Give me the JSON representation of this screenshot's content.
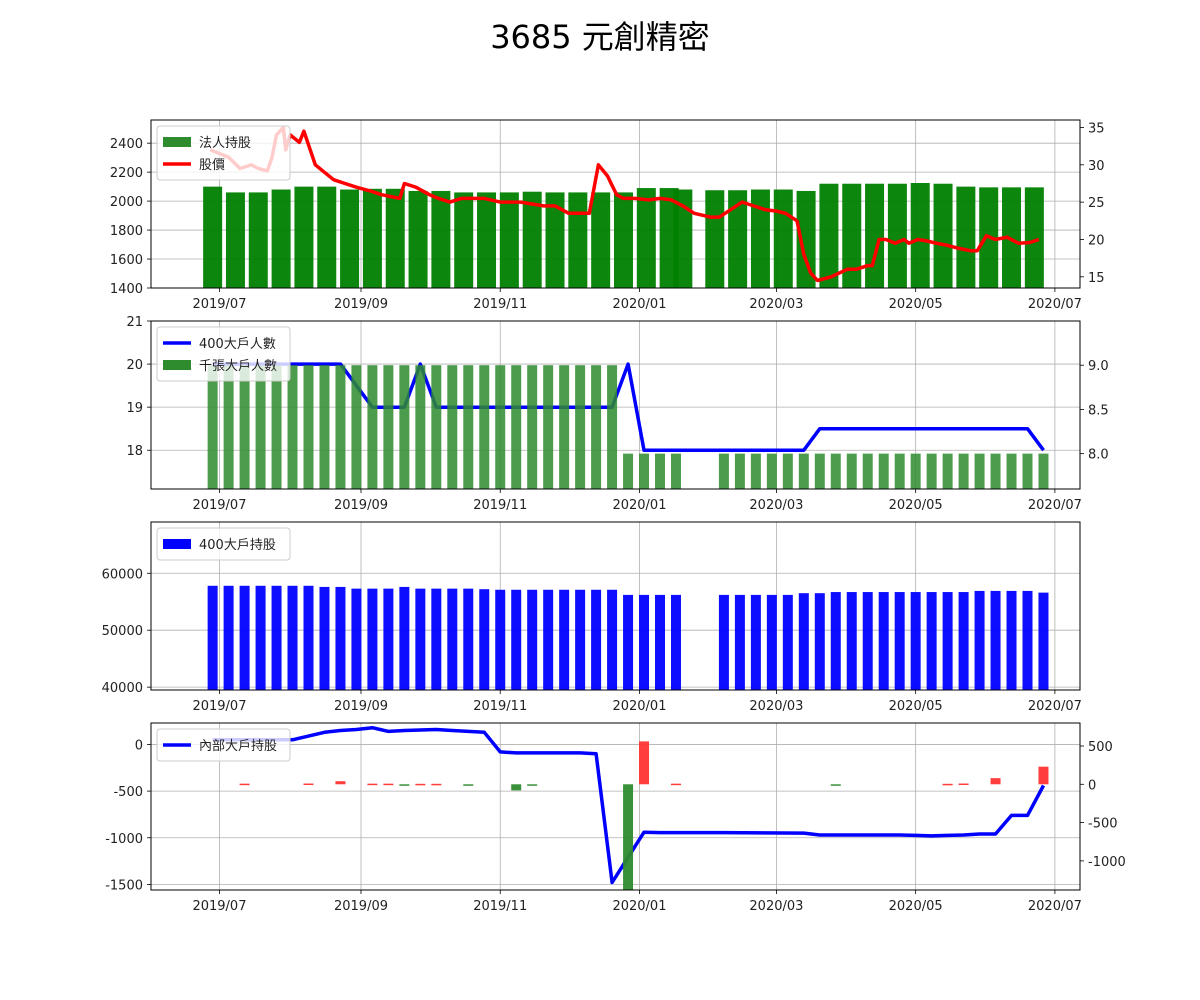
{
  "title": "3685 元創精密",
  "chart_data": [
    {
      "type": "bar+line",
      "x_ticks": [
        "2019/07",
        "2019/09",
        "2019/11",
        "2020/01",
        "2020/03",
        "2020/05",
        "2020/07"
      ],
      "y_left": {
        "lim": [
          1400,
          2560
        ],
        "ticks": [
          "1400",
          "1600",
          "1800",
          "2000",
          "2200",
          "2400"
        ]
      },
      "y_right": {
        "lim": [
          13.5,
          36
        ],
        "ticks": [
          "15",
          "20",
          "25",
          "30",
          "35"
        ]
      },
      "legend": [
        "法人持股",
        "股價"
      ],
      "series": [
        {
          "name": "法人持股",
          "axis": "left",
          "kind": "bar",
          "x": [
            "2019-06-28",
            "2019-07-08",
            "2019-07-18",
            "2019-07-28",
            "2019-08-07",
            "2019-08-17",
            "2019-08-27",
            "2019-09-06",
            "2019-09-16",
            "2019-09-26",
            "2019-10-06",
            "2019-10-16",
            "2019-10-26",
            "2019-11-05",
            "2019-11-15",
            "2019-11-25",
            "2019-12-05",
            "2019-12-15",
            "2019-12-25",
            "2020-01-04",
            "2020-01-14",
            "2020-01-20",
            "2020-02-03",
            "2020-02-13",
            "2020-02-23",
            "2020-03-04",
            "2020-03-14",
            "2020-03-24",
            "2020-04-03",
            "2020-04-13",
            "2020-04-23",
            "2020-05-03",
            "2020-05-13",
            "2020-05-23",
            "2020-06-02",
            "2020-06-12",
            "2020-06-22"
          ],
          "values": [
            2100,
            2060,
            2060,
            2080,
            2100,
            2100,
            2080,
            2085,
            2085,
            2070,
            2070,
            2060,
            2060,
            2060,
            2065,
            2060,
            2060,
            2060,
            2060,
            2090,
            2090,
            2080,
            2075,
            2075,
            2080,
            2080,
            2070,
            2120,
            2120,
            2120,
            2120,
            2125,
            2120,
            2100,
            2095,
            2095,
            2095
          ]
        },
        {
          "name": "股價",
          "axis": "right",
          "kind": "line",
          "color": "#ff0000",
          "x": [
            "2019-06-27",
            "2019-07-05",
            "2019-07-10",
            "2019-07-15",
            "2019-07-18",
            "2019-07-22",
            "2019-07-24",
            "2019-07-26",
            "2019-07-29",
            "2019-07-30",
            "2019-08-01",
            "2019-08-05",
            "2019-08-07",
            "2019-08-12",
            "2019-08-16",
            "2019-08-20",
            "2019-08-25",
            "2019-08-30",
            "2019-09-05",
            "2019-09-10",
            "2019-09-18",
            "2019-09-20",
            "2019-09-25",
            "2019-10-01",
            "2019-10-05",
            "2019-10-10",
            "2019-10-15",
            "2019-10-20",
            "2019-10-25",
            "2019-11-01",
            "2019-11-05",
            "2019-11-10",
            "2019-11-20",
            "2019-11-25",
            "2019-12-01",
            "2019-12-05",
            "2019-12-10",
            "2019-12-14",
            "2019-12-18",
            "2019-12-22",
            "2019-12-25",
            "2019-12-30",
            "2020-01-05",
            "2020-01-10",
            "2020-01-15",
            "2020-01-20",
            "2020-01-25",
            "2020-02-01",
            "2020-02-05",
            "2020-02-10",
            "2020-02-15",
            "2020-02-20",
            "2020-02-25",
            "2020-03-01",
            "2020-03-05",
            "2020-03-10",
            "2020-03-13",
            "2020-03-16",
            "2020-03-19",
            "2020-03-25",
            "2020-04-01",
            "2020-04-05",
            "2020-04-10",
            "2020-04-12",
            "2020-04-15",
            "2020-04-18",
            "2020-04-22",
            "2020-04-26",
            "2020-04-28",
            "2020-05-02",
            "2020-05-06",
            "2020-05-10",
            "2020-05-15",
            "2020-05-20",
            "2020-05-25",
            "2020-05-28",
            "2020-06-01",
            "2020-06-05",
            "2020-06-10",
            "2020-06-15",
            "2020-06-20",
            "2020-06-24"
          ],
          "values": [
            32,
            31,
            29.5,
            30,
            29.5,
            29.2,
            31,
            34,
            35,
            32,
            34,
            33,
            34.5,
            30,
            29,
            28,
            27.5,
            27,
            26.5,
            26,
            25.5,
            27.5,
            27,
            26,
            25.5,
            25,
            25.5,
            25.5,
            25.5,
            25,
            25,
            25,
            24.5,
            24.5,
            23.5,
            23.5,
            23.5,
            30,
            28.5,
            26,
            25.5,
            25.5,
            25.3,
            25.5,
            25.3,
            24.5,
            23.5,
            23,
            23,
            24,
            25,
            24.5,
            24,
            23.8,
            23.5,
            22.5,
            18,
            15.5,
            14.5,
            15,
            16,
            16,
            16.5,
            16.5,
            20,
            20,
            19.5,
            20,
            19.5,
            20,
            19.8,
            19.5,
            19.2,
            18.8,
            18.5,
            18.5,
            20.5,
            20,
            20.3,
            19.5,
            19.6,
            20
          ]
        }
      ]
    },
    {
      "type": "bar+line",
      "x_ticks": [
        "2019/07",
        "2019/09",
        "2019/11",
        "2020/01",
        "2020/03",
        "2020/05",
        "2020/07"
      ],
      "y_left": {
        "lim": [
          17.1,
          21
        ],
        "ticks": [
          "18",
          "19",
          "20",
          "21"
        ]
      },
      "y_right": {
        "lim": [
          7.6,
          9.5
        ],
        "ticks": [
          "8.0",
          "8.5",
          "9.0"
        ]
      },
      "legend": [
        "400大戶人數",
        "千張大戶人數"
      ],
      "series": [
        {
          "name": "400大戶人數",
          "axis": "left",
          "kind": "line",
          "color": "#0000ff",
          "x": [
            "2019-06-28",
            "2019-08-23",
            "2019-09-06",
            "2019-09-13",
            "2019-09-20",
            "2019-09-27",
            "2019-10-04",
            "2019-10-11",
            "2019-12-13",
            "2019-12-20",
            "2019-12-27",
            "2020-01-03",
            "2020-03-06",
            "2020-03-13",
            "2020-03-20",
            "2020-06-19",
            "2020-06-26"
          ],
          "values": [
            20,
            20,
            19,
            19,
            19,
            20,
            19,
            19,
            19,
            19,
            20,
            18,
            18,
            18,
            18.5,
            18.5,
            18
          ]
        },
        {
          "name": "千張大戶人數",
          "axis": "right",
          "kind": "bar",
          "color": "#2e8b2e",
          "x": [
            "2019-06-28",
            "2019-07-05",
            "2019-07-12",
            "2019-07-19",
            "2019-07-26",
            "2019-08-02",
            "2019-08-09",
            "2019-08-16",
            "2019-08-23",
            "2019-08-30",
            "2019-09-06",
            "2019-09-13",
            "2019-09-20",
            "2019-09-27",
            "2019-10-04",
            "2019-10-11",
            "2019-10-18",
            "2019-10-25",
            "2019-11-01",
            "2019-11-08",
            "2019-11-15",
            "2019-11-22",
            "2019-11-29",
            "2019-12-06",
            "2019-12-13",
            "2019-12-20",
            "2019-12-27",
            "2020-01-03",
            "2020-01-10",
            "2020-01-17",
            "2020-02-07",
            "2020-02-14",
            "2020-02-21",
            "2020-02-28",
            "2020-03-06",
            "2020-03-13",
            "2020-03-20",
            "2020-03-27",
            "2020-04-03",
            "2020-04-10",
            "2020-04-17",
            "2020-04-24",
            "2020-05-01",
            "2020-05-08",
            "2020-05-15",
            "2020-05-22",
            "2020-05-29",
            "2020-06-05",
            "2020-06-12",
            "2020-06-19",
            "2020-06-26"
          ],
          "values": [
            9,
            9,
            9,
            9,
            9,
            9,
            9,
            9,
            9,
            9,
            9,
            9,
            9,
            9,
            9,
            9,
            9,
            9,
            9,
            9,
            9,
            9,
            9,
            9,
            9,
            9,
            8,
            8,
            8,
            8,
            8,
            8,
            8,
            8,
            8,
            8,
            8,
            8,
            8,
            8,
            8,
            8,
            8,
            8,
            8,
            8,
            8,
            8,
            8,
            8,
            8
          ]
        }
      ]
    },
    {
      "type": "bar",
      "x_ticks": [
        "2019/07",
        "2019/09",
        "2019/11",
        "2020/01",
        "2020/03",
        "2020/05",
        "2020/07"
      ],
      "y_left": {
        "lim": [
          39500,
          69000
        ],
        "ticks": [
          "40000",
          "50000",
          "60000"
        ]
      },
      "legend": [
        "400大戶持股"
      ],
      "series": [
        {
          "name": "400大戶持股",
          "kind": "bar",
          "color": "#0000ff",
          "x": [
            "2019-06-28",
            "2019-07-05",
            "2019-07-12",
            "2019-07-19",
            "2019-07-26",
            "2019-08-02",
            "2019-08-09",
            "2019-08-16",
            "2019-08-23",
            "2019-08-30",
            "2019-09-06",
            "2019-09-13",
            "2019-09-20",
            "2019-09-27",
            "2019-10-04",
            "2019-10-11",
            "2019-10-18",
            "2019-10-25",
            "2019-11-01",
            "2019-11-08",
            "2019-11-15",
            "2019-11-22",
            "2019-11-29",
            "2019-12-06",
            "2019-12-13",
            "2019-12-20",
            "2019-12-27",
            "2020-01-03",
            "2020-01-10",
            "2020-01-17",
            "2020-02-07",
            "2020-02-14",
            "2020-02-21",
            "2020-02-28",
            "2020-03-06",
            "2020-03-13",
            "2020-03-20",
            "2020-03-27",
            "2020-04-03",
            "2020-04-10",
            "2020-04-17",
            "2020-04-24",
            "2020-05-01",
            "2020-05-08",
            "2020-05-15",
            "2020-05-22",
            "2020-05-29",
            "2020-06-05",
            "2020-06-12",
            "2020-06-19",
            "2020-06-26"
          ],
          "values": [
            57800,
            57800,
            57800,
            57800,
            57800,
            57800,
            57800,
            57600,
            57600,
            57300,
            57300,
            57300,
            57600,
            57300,
            57300,
            57300,
            57300,
            57200,
            57100,
            57100,
            57100,
            57100,
            57100,
            57100,
            57100,
            57100,
            56200,
            56200,
            56200,
            56200,
            56200,
            56200,
            56200,
            56200,
            56200,
            56500,
            56500,
            56700,
            56700,
            56700,
            56700,
            56700,
            56700,
            56700,
            56700,
            56700,
            56900,
            56900,
            56900,
            56900,
            56600
          ]
        }
      ]
    },
    {
      "type": "bar+line",
      "x_ticks": [
        "2019/07",
        "2019/09",
        "2019/11",
        "2020/01",
        "2020/03",
        "2020/05",
        "2020/07"
      ],
      "y_left": {
        "lim": [
          -1560,
          230
        ],
        "ticks": [
          "0",
          "-500",
          "-1000",
          "-1500"
        ]
      },
      "y_right": {
        "lim": [
          -1380,
          800
        ],
        "ticks": [
          "500",
          "0",
          "-500",
          "-1000"
        ]
      },
      "legend": [
        "內部大戶持股"
      ],
      "series": [
        {
          "name": "內部大戶持股",
          "axis": "left",
          "kind": "line",
          "color": "#0000ff",
          "x": [
            "2019-06-28",
            "2019-08-02",
            "2019-08-16",
            "2019-08-23",
            "2019-08-30",
            "2019-09-06",
            "2019-09-13",
            "2019-09-20",
            "2019-09-27",
            "2019-10-04",
            "2019-10-11",
            "2019-10-18",
            "2019-10-25",
            "2019-11-01",
            "2019-11-08",
            "2019-11-15",
            "2019-11-22",
            "2019-11-29",
            "2019-12-06",
            "2019-12-13",
            "2019-12-20",
            "2020-01-03",
            "2020-01-10",
            "2020-02-07",
            "2020-03-13",
            "2020-03-20",
            "2020-04-24",
            "2020-05-01",
            "2020-05-08",
            "2020-05-15",
            "2020-05-22",
            "2020-05-29",
            "2020-06-05",
            "2020-06-12",
            "2020-06-19",
            "2020-06-26"
          ],
          "values": [
            50,
            50,
            130,
            150,
            160,
            180,
            140,
            150,
            155,
            160,
            150,
            140,
            130,
            -80,
            -90,
            -90,
            -90,
            -90,
            -90,
            -100,
            -1480,
            -940,
            -945,
            -945,
            -950,
            -970,
            -970,
            -975,
            -980,
            -975,
            -970,
            -960,
            -960,
            -760,
            -760,
            -440
          ]
        },
        {
          "name": "",
          "axis": "right",
          "kind": "bar",
          "x": [
            "2019-07-12",
            "2019-08-09",
            "2019-08-23",
            "2019-09-06",
            "2019-09-13",
            "2019-09-20",
            "2019-09-27",
            "2019-10-04",
            "2019-10-18",
            "2019-11-08",
            "2019-11-15",
            "2019-12-27",
            "2020-01-03",
            "2020-01-17",
            "2020-03-27",
            "2020-05-15",
            "2020-05-22",
            "2020-06-05",
            "2020-06-26"
          ],
          "values": [
            8,
            10,
            40,
            8,
            8,
            -12,
            6,
            6,
            -10,
            -80,
            -6,
            -1380,
            560,
            8,
            -10,
            6,
            10,
            80,
            230
          ]
        }
      ]
    }
  ]
}
